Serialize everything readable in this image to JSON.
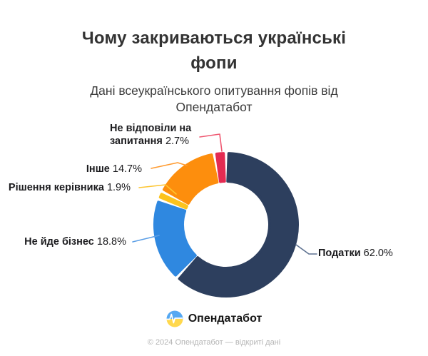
{
  "header": {
    "title_lines": [
      "Чому закриваються українські",
      "фопи"
    ],
    "subtitle_lines": [
      "Дані всеукраїнського опитування фопів від",
      "Опендатабот"
    ]
  },
  "chart_data": {
    "type": "pie",
    "donut": true,
    "title": "Чому закриваються українські фопи",
    "subtitle": "Дані всеукраїнського опитування фопів від Опендатабот",
    "unit": "%",
    "start_angle_deg": 0,
    "clockwise": true,
    "slices": [
      {
        "id": "podatky",
        "label": "Податки",
        "value": 62.0,
        "percent_label": "62.0%",
        "color": "#2d3f5e",
        "line_color": "#5d7190"
      },
      {
        "id": "ne-yde-biznes",
        "label": "Не йде бізнес",
        "value": 18.8,
        "percent_label": "18.8%",
        "color": "#2f88e0",
        "line_color": "#5c9fe6"
      },
      {
        "id": "rishennia-kerivnyka",
        "label": "Рішення керівника",
        "value": 1.9,
        "percent_label": "1.9%",
        "color": "#fcc31d",
        "line_color": "#fdc530"
      },
      {
        "id": "inshe",
        "label": "Інше",
        "value": 14.7,
        "percent_label": "14.7%",
        "color": "#fd8e0d",
        "line_color": "#ff9a2e"
      },
      {
        "id": "ne-vidpovily",
        "label": "Не відповіли на запитання",
        "value": 2.7,
        "percent_label": "2.7%",
        "color": "#e42b52",
        "line_color": "#ef5871",
        "label_lines": [
          "Не відповіли на",
          "запитання"
        ]
      }
    ]
  },
  "branding": {
    "logo_text": "Опендатабот",
    "logo_colors": {
      "top": "#55a8f2",
      "bottom": "#ffd84d",
      "pulse": "#ffffff"
    }
  },
  "footer": {
    "copyright": "© 2024 Опендатабот — відкриті дані"
  }
}
